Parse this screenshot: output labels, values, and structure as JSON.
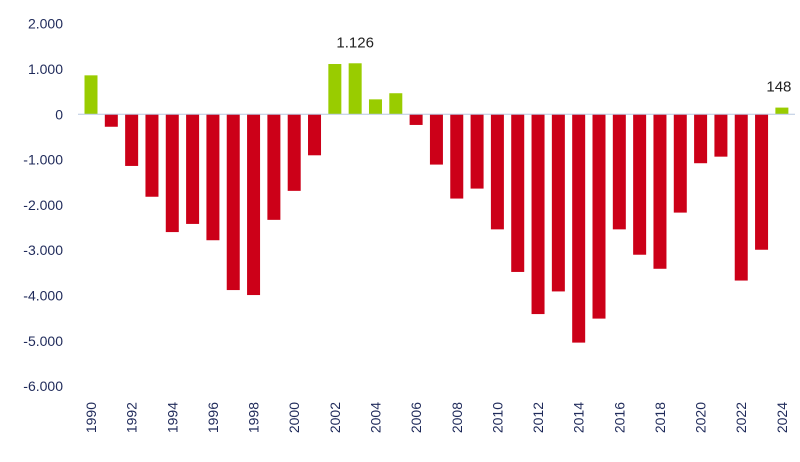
{
  "chart_data": {
    "type": "bar",
    "title": "",
    "xlabel": "",
    "ylabel": "",
    "ylim": [
      -6000,
      2000
    ],
    "yticks": [
      2000,
      1000,
      0,
      -1000,
      -2000,
      -3000,
      -4000,
      -5000,
      -6000
    ],
    "ytick_labels": [
      "2.000",
      "1.000",
      "0",
      "-1.000",
      "-2.000",
      "-3.000",
      "-4.000",
      "-5.000",
      "-6.000"
    ],
    "grid": false,
    "categories": [
      "1990",
      "1991",
      "1992",
      "1993",
      "1994",
      "1995",
      "1996",
      "1997",
      "1998",
      "1999",
      "2000",
      "2001",
      "2002",
      "2003",
      "2004",
      "2005",
      "2006",
      "2007",
      "2008",
      "2009",
      "2010",
      "2011",
      "2012",
      "2013",
      "2014",
      "2015",
      "2016",
      "2017",
      "2018",
      "2019",
      "2020",
      "2021",
      "2022",
      "2023",
      "2024"
    ],
    "xtick_labels": [
      "1990",
      "1992",
      "1994",
      "1996",
      "1998",
      "2000",
      "2002",
      "2004",
      "2006",
      "2008",
      "2010",
      "2012",
      "2014",
      "2016",
      "2018",
      "2020",
      "2022",
      "2024"
    ],
    "values": [
      860,
      -275,
      -1140,
      -1820,
      -2600,
      -2420,
      -2780,
      -3880,
      -3990,
      -2330,
      -1690,
      -905,
      1110,
      1126,
      330,
      465,
      -235,
      -1110,
      -1860,
      -1640,
      -2540,
      -3480,
      -4410,
      -3910,
      -5040,
      -4510,
      -2540,
      -3100,
      -3410,
      -2170,
      -1080,
      -935,
      -3670,
      -2990,
      148
    ],
    "data_labels": [
      {
        "category": "2003",
        "text": "1.126"
      },
      {
        "category": "2024",
        "text": "148"
      }
    ],
    "colors": {
      "positive": "#99cc00",
      "negative": "#cc0018",
      "axis": "#b8c8e0",
      "text": "#1f2a5a"
    }
  }
}
